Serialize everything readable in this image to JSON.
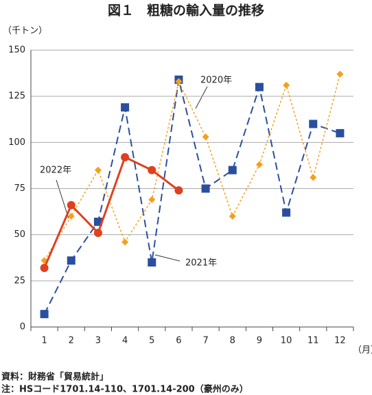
{
  "chart_data": {
    "type": "line",
    "title": "図１　粗糖の輸入量の推移",
    "y_label": "（千トン）",
    "x_label": "（月）",
    "source": "資料：財務省「貿易統計」",
    "note": "注：HSコード1701.14-110、1701.14-200（豪州のみ）",
    "categories": [
      "1",
      "2",
      "3",
      "4",
      "5",
      "6",
      "7",
      "8",
      "9",
      "10",
      "11",
      "12"
    ],
    "series": [
      {
        "name": "2020年",
        "color": "#2a4f9e",
        "marker": "square",
        "line": "dashed",
        "values": [
          7,
          36,
          57,
          119,
          35,
          134,
          75,
          85,
          130,
          62,
          110,
          105
        ]
      },
      {
        "name": "2021年",
        "color": "#f5a01a",
        "marker": "diamond",
        "line": "dotted",
        "values": [
          36,
          60,
          85,
          46,
          69,
          133,
          103,
          60,
          88,
          131,
          81,
          137
        ]
      },
      {
        "name": "2022年",
        "color": "#e0401e",
        "marker": "circle",
        "line": "solid",
        "values": [
          32,
          66,
          51,
          92,
          85,
          74,
          null,
          null,
          null,
          null,
          null,
          null
        ]
      }
    ],
    "ylim": [
      0,
      150
    ],
    "yticks": [
      0,
      25,
      50,
      75,
      100,
      125,
      150
    ],
    "grid": true
  }
}
